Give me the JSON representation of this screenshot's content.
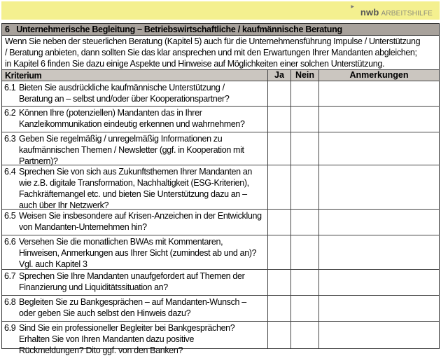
{
  "banner": {
    "brand": "nwb",
    "product": "ARBEITSHILFE",
    "colors": {
      "banner": "#f4f08f",
      "title_bg": "#a8a29c",
      "header_bg": "#cbc6c0"
    }
  },
  "section": {
    "number": "6",
    "title": "Unternehmerische Begleitung – Betriebswirtschaftliche / kaufmännische Beratung",
    "intro": [
      "Wenn Sie neben der steuerlichen Beratung (Kapitel 5) auch für die Unternehmensführung Impulse / Unterstützung",
      "/ Beratung anbieten, dann sollten Sie das klar ansprechen und mit den Erwartungen Ihrer Mandanten abgleichen;",
      "in Kapitel 6 finden Sie dazu einige Aspekte und Hinweise auf Möglichkeiten einer solchen Unterstützung."
    ]
  },
  "table": {
    "headers": {
      "criterion": "Kriterium",
      "yes": "Ja",
      "no": "Nein",
      "notes": "Anmerkungen"
    },
    "rows": [
      {
        "num": "6.1",
        "lines": [
          "Bieten Sie ausdrückliche kaufmännische Unterstützung /",
          "Beratung an – selbst und/oder über Kooperationspartner?"
        ]
      },
      {
        "num": "6.2",
        "lines": [
          "Können Ihre (potenziellen) Mandanten das in Ihrer",
          "Kanzleikommunikation eindeutig erkennen und wahrnehmen?"
        ]
      },
      {
        "num": "6.3",
        "lines": [
          "Geben Sie regelmäßig / unregelmäßig Informationen zu",
          "kaufmännischen Themen / Newsletter (ggf. in Kooperation mit",
          "Partnern)?"
        ]
      },
      {
        "num": "6.4",
        "lines": [
          "Sprechen Sie von sich aus Zukunftsthemen Ihrer Mandanten an",
          "wie z.B. digitale Transformation, Nachhaltigkeit (ESG-Kriterien),",
          "Fachkräftemangel etc. und bieten Sie Unterstützung dazu an –",
          "auch über Ihr Netzwerk?"
        ]
      },
      {
        "num": "6.5",
        "lines": [
          "Weisen Sie insbesondere auf Krisen-Anzeichen in der Entwicklung",
          "von Mandanten-Unternehmen hin?"
        ]
      },
      {
        "num": "6.6",
        "lines": [
          "Versehen Sie die monatlichen BWAs mit Kommentaren,",
          "Hinweisen, Anmerkungen aus Ihrer Sicht (zumindest ab und an)?",
          "Vgl. auch Kapitel 3"
        ]
      },
      {
        "num": "6.7",
        "lines": [
          "Sprechen Sie Ihre Mandanten unaufgefordert auf Themen der",
          "Finanzierung und Liquiditätssituation an?"
        ]
      },
      {
        "num": "6.8",
        "lines": [
          "Begleiten Sie zu Bankgesprächen – auf Mandanten-Wunsch –",
          "oder geben Sie auch selbst den Hinweis dazu?"
        ]
      },
      {
        "num": "6.9",
        "lines": [
          "Sind Sie ein professioneller Begleiter bei Bankgesprächen?",
          "Erhalten Sie von Ihren Mandanten dazu positive",
          "Rückmeldungen? Dito ggf. von den Banken?"
        ]
      }
    ]
  }
}
